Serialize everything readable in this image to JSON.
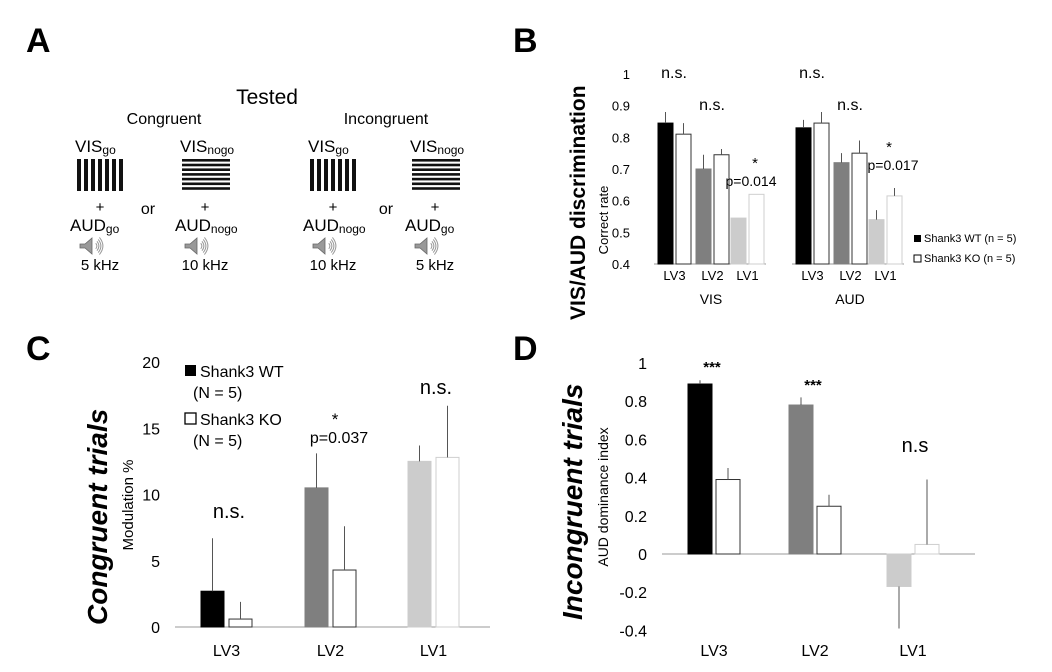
{
  "panels": {
    "a": {
      "letter": "A",
      "title": "Tested",
      "congruent_label": "Congruent",
      "incongruent_label": "Incongruent",
      "or_label": "or",
      "plus": "+",
      "vis_prefix": "VIS",
      "aud_prefix": "AUD",
      "stimuli": [
        {
          "vis_sub": "go",
          "aud_sub": "go",
          "freq": "5 kHz",
          "grating": "vertical"
        },
        {
          "vis_sub": "nogo",
          "aud_sub": "nogo",
          "freq": "10 kHz",
          "grating": "horizontal"
        },
        {
          "vis_sub": "go",
          "aud_sub": "nogo",
          "freq": "10 kHz",
          "grating": "vertical"
        },
        {
          "vis_sub": "nogo",
          "aud_sub": "go",
          "freq": "5 kHz",
          "grating": "horizontal"
        }
      ]
    },
    "b": {
      "letter": "B"
    },
    "c": {
      "letter": "C"
    },
    "d": {
      "letter": "D"
    }
  },
  "chart_data": [
    {
      "id": "B",
      "type": "bar",
      "title": "VIS/AUD discrimination",
      "ylabel": "Correct rate",
      "ylim": [
        0.4,
        1.0
      ],
      "yticks": [
        "0.4",
        "0.5",
        "0.6",
        "0.7",
        "0.8",
        "0.9",
        "1"
      ],
      "groups": [
        {
          "name": "VIS",
          "categories": [
            "LV3",
            "LV2",
            "LV1"
          ],
          "wt": [
            0.845,
            0.7,
            0.545
          ],
          "wt_err": [
            0.035,
            0.045,
            0.0
          ],
          "ko": [
            0.81,
            0.745,
            0.62
          ],
          "ko_err": [
            0.035,
            0.018,
            0.0
          ],
          "annotations": [
            {
              "cat": 0,
              "text": "n.s."
            },
            {
              "cat": 1,
              "text": "n.s."
            },
            {
              "cat": 2,
              "text": "*",
              "sub": "p=0.014"
            }
          ]
        },
        {
          "name": "AUD",
          "categories": [
            "LV3",
            "LV2",
            "LV1"
          ],
          "wt": [
            0.83,
            0.72,
            0.54
          ],
          "wt_err": [
            0.025,
            0.03,
            0.03
          ],
          "ko": [
            0.845,
            0.75,
            0.615
          ],
          "ko_err": [
            0.035,
            0.04,
            0.025
          ],
          "annotations": [
            {
              "cat": 0,
              "text": "n.s."
            },
            {
              "cat": 1,
              "text": "n.s."
            },
            {
              "cat": 2,
              "text": "*",
              "sub": "p=0.017"
            }
          ]
        }
      ],
      "legend": [
        "Shank3 WT (n = 5)",
        "Shank3 KO (n = 5)"
      ]
    },
    {
      "id": "C",
      "type": "bar",
      "title": "Congruent trials",
      "ylabel": "Modulation %",
      "ylim": [
        0,
        20
      ],
      "yticks": [
        "0",
        "5",
        "10",
        "15",
        "20"
      ],
      "categories": [
        "LV3",
        "LV2",
        "LV1"
      ],
      "wt": [
        2.7,
        10.5,
        12.5
      ],
      "wt_err": [
        4.0,
        2.6,
        1.2
      ],
      "ko": [
        0.6,
        4.3,
        12.8
      ],
      "ko_err": [
        1.3,
        3.3,
        3.9
      ],
      "annotations": [
        {
          "cat": 0,
          "text": "n.s."
        },
        {
          "cat": 1,
          "text": "*",
          "sub": "p=0.037"
        },
        {
          "cat": 2,
          "text": "n.s."
        }
      ],
      "legend": [
        {
          "line1": "Shank3 WT",
          "line2": "(N = 5)"
        },
        {
          "line1": "Shank3 KO",
          "line2": "(N = 5)"
        }
      ]
    },
    {
      "id": "D",
      "type": "bar",
      "title": "Incongruent trials",
      "ylabel": "AUD dominance index",
      "ylim": [
        -0.4,
        1.0
      ],
      "yticks": [
        "-0.4",
        "-0.2",
        "0",
        "0.2",
        "0.4",
        "0.6",
        "0.8",
        "1"
      ],
      "categories": [
        "LV3",
        "LV2",
        "LV1"
      ],
      "wt": [
        0.89,
        0.78,
        -0.17
      ],
      "wt_err": [
        0.02,
        0.04,
        0.22
      ],
      "ko": [
        0.39,
        0.25,
        0.05
      ],
      "ko_err": [
        0.06,
        0.06,
        0.34
      ],
      "annotations": [
        {
          "cat": 0,
          "text": "***"
        },
        {
          "cat": 1,
          "text": "***"
        },
        {
          "cat": 2,
          "text": "n.s"
        }
      ]
    }
  ],
  "colors": {
    "lv3": "#000000",
    "lv2": "#7f7f7f",
    "lv1": "#cccccc",
    "ko_fill": "#ffffff",
    "axis": "#999999",
    "text": "#111111"
  }
}
